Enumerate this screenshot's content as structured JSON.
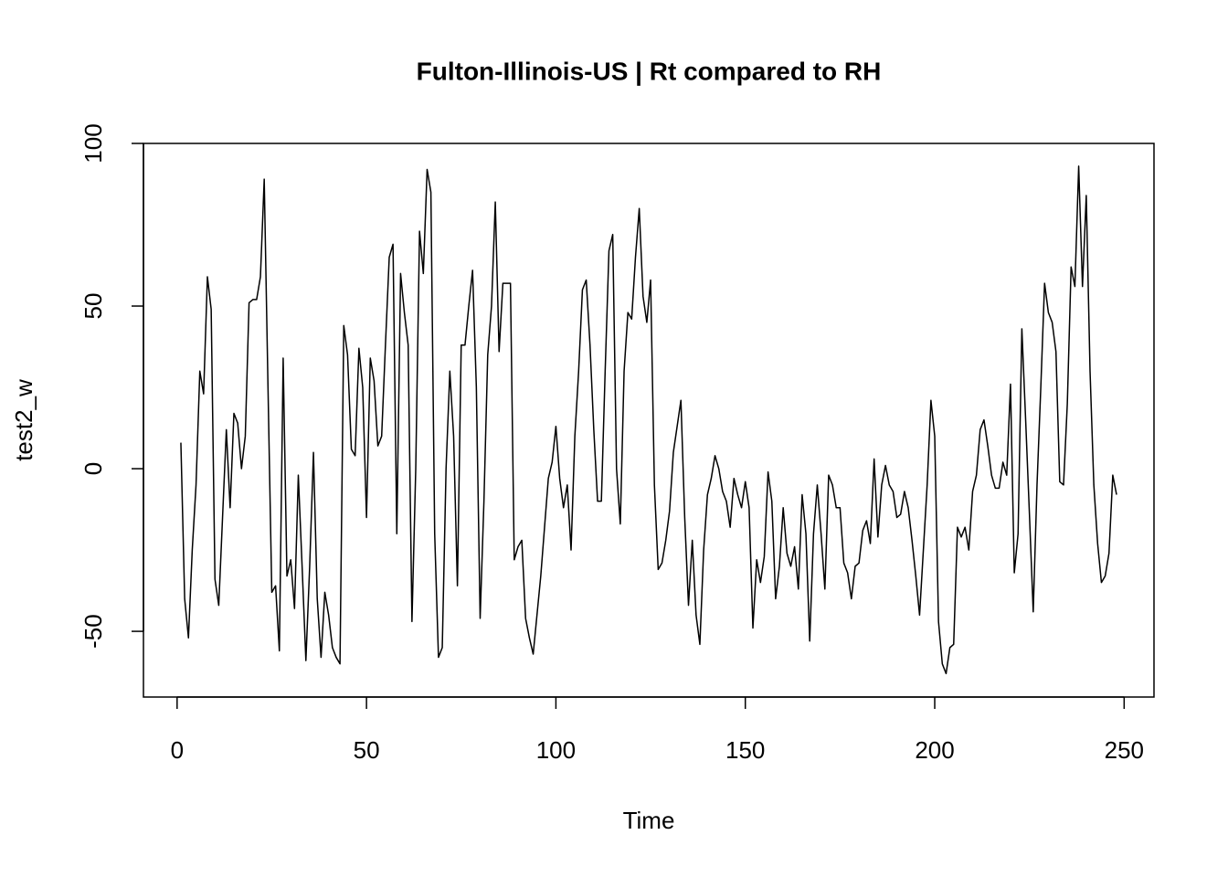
{
  "chart_data": {
    "type": "line",
    "title": "Fulton-Illinois-US | Rt compared to RH",
    "x_label": "Time",
    "y_label": "test2_w",
    "color": "#000000",
    "x": [
      1,
      2,
      3,
      4,
      5,
      6,
      7,
      8,
      9,
      10,
      11,
      12,
      13,
      14,
      15,
      16,
      17,
      18,
      19,
      20,
      21,
      22,
      23,
      24,
      25,
      26,
      27,
      28,
      29,
      30,
      31,
      32,
      33,
      34,
      35,
      36,
      37,
      38,
      39,
      40,
      41,
      42,
      43,
      44,
      45,
      46,
      47,
      48,
      49,
      50,
      51,
      52,
      53,
      54,
      55,
      56,
      57,
      58,
      59,
      60,
      61,
      62,
      63,
      64,
      65,
      66,
      67,
      68,
      69,
      70,
      71,
      72,
      73,
      74,
      75,
      76,
      77,
      78,
      79,
      80,
      81,
      82,
      83,
      84,
      85,
      86,
      87,
      88,
      89,
      90,
      91,
      92,
      93,
      94,
      95,
      96,
      97,
      98,
      99,
      100,
      101,
      102,
      103,
      104,
      105,
      106,
      107,
      108,
      109,
      110,
      111,
      112,
      113,
      114,
      115,
      116,
      117,
      118,
      119,
      120,
      121,
      122,
      123,
      124,
      125,
      126,
      127,
      128,
      129,
      130,
      131,
      132,
      133,
      134,
      135,
      136,
      137,
      138,
      139,
      140,
      141,
      142,
      143,
      144,
      145,
      146,
      147,
      148,
      149,
      150,
      151,
      152,
      153,
      154,
      155,
      156,
      157,
      158,
      159,
      160,
      161,
      162,
      163,
      164,
      165,
      166,
      167,
      168,
      169,
      170,
      171,
      172,
      173,
      174,
      175,
      176,
      177,
      178,
      179,
      180,
      181,
      182,
      183,
      184,
      185,
      186,
      187,
      188,
      189,
      190,
      191,
      192,
      193,
      194,
      195,
      196,
      197,
      198,
      199,
      200,
      201,
      202,
      203,
      204,
      205,
      206,
      207,
      208,
      209,
      210,
      211,
      212,
      213,
      214,
      215,
      216,
      217,
      218,
      219,
      220,
      221,
      222,
      223,
      224,
      225,
      226,
      227,
      228,
      229,
      230,
      231,
      232,
      233,
      234,
      235,
      236,
      237,
      238,
      239,
      240,
      241,
      242,
      243,
      244,
      245,
      246,
      247,
      248
    ],
    "values": [
      8,
      -40,
      -52,
      -25,
      -5,
      30,
      23,
      59,
      49,
      -34,
      -42,
      -15,
      12,
      -12,
      17,
      14,
      0,
      10,
      51,
      52,
      52,
      59,
      89,
      25,
      -38,
      -36,
      -56,
      34,
      -33,
      -28,
      -43,
      -2,
      -30,
      -59,
      -30,
      5,
      -40,
      -58,
      -38,
      -45,
      -55,
      -58,
      -60,
      44,
      35,
      6,
      4,
      37,
      25,
      -15,
      34,
      27,
      7,
      10,
      38,
      65,
      69,
      -20,
      60,
      48,
      38,
      -47,
      0,
      73,
      60,
      92,
      85,
      -20,
      -58,
      -55,
      0,
      30,
      10,
      -36,
      38,
      38,
      50,
      61,
      25,
      -46,
      -10,
      35,
      50,
      82,
      36,
      57,
      57,
      57,
      -28,
      -24,
      -22,
      -46,
      -52,
      -57,
      -45,
      -33,
      -18,
      -3,
      2,
      13,
      -3,
      -12,
      -5,
      -25,
      10,
      30,
      55,
      58,
      38,
      12,
      -10,
      -10,
      30,
      67,
      72,
      0,
      -17,
      30,
      48,
      46,
      65,
      80,
      53,
      45,
      58,
      -5,
      -31,
      -29,
      -22,
      -13,
      5,
      13,
      21,
      -15,
      -42,
      -22,
      -45,
      -54,
      -25,
      -8,
      -3,
      4,
      0,
      -7,
      -10,
      -18,
      -3,
      -8,
      -12,
      -4,
      -12,
      -49,
      -28,
      -35,
      -27,
      -1,
      -10,
      -40,
      -30,
      -12,
      -26,
      -30,
      -24,
      -37,
      -8,
      -20,
      -53,
      -20,
      -5,
      -20,
      -37,
      -2,
      -5,
      -12,
      -12,
      -29,
      -32,
      -40,
      -30,
      -29,
      -19,
      -16,
      -23,
      3,
      -21,
      -5,
      1,
      -5,
      -7,
      -15,
      -14,
      -7,
      -12,
      -22,
      -33,
      -45,
      -25,
      -5,
      21,
      10,
      -47,
      -60,
      -63,
      -55,
      -54,
      -18,
      -21,
      -18,
      -25,
      -7,
      -2,
      12,
      15,
      7,
      -2,
      -6,
      -6,
      2,
      -2,
      26,
      -32,
      -20,
      43,
      15,
      -14,
      -44,
      -5,
      25,
      57,
      48,
      45,
      36,
      -4,
      -5,
      20,
      62,
      56,
      93,
      56,
      84,
      30,
      -5,
      -23,
      -35,
      -33,
      -26,
      -2,
      -8
    ],
    "xlim": [
      -8.88,
      257.88
    ],
    "xticks": [
      0,
      50,
      100,
      150,
      200,
      250
    ],
    "ylim": [
      -70.2,
      100
    ],
    "yticks": [
      -50,
      0,
      50,
      100
    ]
  }
}
